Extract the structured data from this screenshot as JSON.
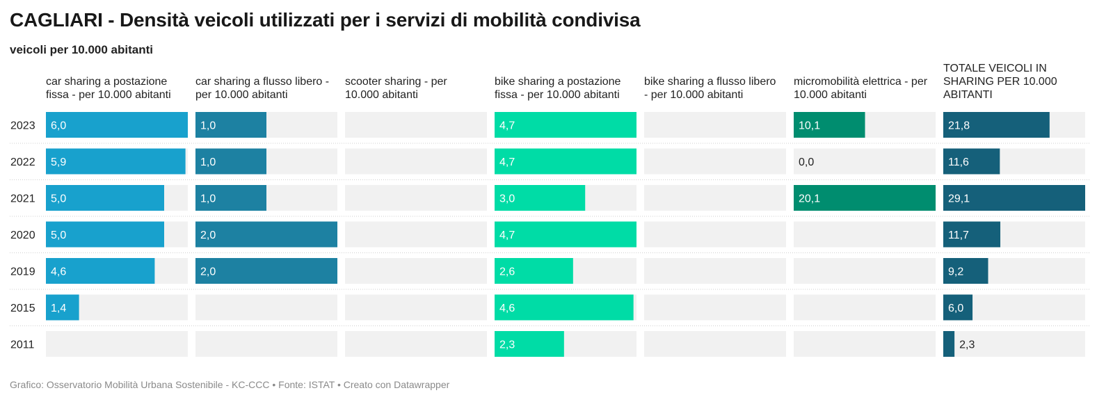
{
  "title": "CAGLIARI - Densità veicoli utilizzati per i servizi di mobilità condivisa",
  "subtitle": "veicoli per 10.000 abitanti",
  "footer": "Grafico: Osservatorio Mobilità Urbana Sostenibile - KC-CCC • Fonte: ISTAT • Creato con Datawrapper",
  "colors": {
    "car_fixed": "#18a1cd",
    "car_free": "#1d81a2",
    "bike_fixed": "#00dca6",
    "micro": "#008d6f",
    "total": "#15607a",
    "track": "#f1f1f1"
  },
  "chart_data": {
    "type": "bar",
    "orientation": "horizontal",
    "layout": "small-multiples",
    "categories": [
      "2023",
      "2022",
      "2021",
      "2020",
      "2019",
      "2015",
      "2011"
    ],
    "series": [
      {
        "name": "car sharing a postazione fissa - per 10.000 abitanti",
        "color": "#18a1cd",
        "max": 6.0,
        "values": [
          6.0,
          5.9,
          5.0,
          5.0,
          4.6,
          1.4,
          null
        ],
        "labels": [
          "6,0",
          "5,9",
          "5,0",
          "5,0",
          "4,6",
          "1,4",
          ""
        ]
      },
      {
        "name": "car sharing a flusso libero - per 10.000 abitanti",
        "color": "#1d81a2",
        "max": 2.0,
        "values": [
          1.0,
          1.0,
          1.0,
          2.0,
          2.0,
          null,
          null
        ],
        "labels": [
          "1,0",
          "1,0",
          "1,0",
          "2,0",
          "2,0",
          "",
          ""
        ]
      },
      {
        "name": "scooter sharing - per 10.000 abitanti",
        "color": "#1d81a2",
        "max": 1.0,
        "values": [
          null,
          null,
          null,
          null,
          null,
          null,
          null
        ],
        "labels": [
          "",
          "",
          "",
          "",
          "",
          "",
          ""
        ]
      },
      {
        "name": "bike sharing a postazione fissa - per 10.000 abitanti",
        "color": "#00dca6",
        "max": 4.7,
        "values": [
          4.7,
          4.7,
          3.0,
          4.7,
          2.6,
          4.6,
          2.3
        ],
        "labels": [
          "4,7",
          "4,7",
          "3,0",
          "4,7",
          "2,6",
          "4,6",
          "2,3"
        ]
      },
      {
        "name": "bike sharing a flusso libero - per 10.000 abitanti",
        "color": "#00dca6",
        "max": 1.0,
        "values": [
          null,
          null,
          null,
          null,
          null,
          null,
          null
        ],
        "labels": [
          "",
          "",
          "",
          "",
          "",
          "",
          ""
        ]
      },
      {
        "name": "micromobilità elettrica - per 10.000 abitanti",
        "color": "#008d6f",
        "max": 20.1,
        "values": [
          10.1,
          0.0,
          20.1,
          null,
          null,
          null,
          null
        ],
        "labels": [
          "10,1",
          "0,0",
          "20,1",
          "",
          "",
          "",
          ""
        ]
      },
      {
        "name": "TOTALE VEICOLI IN SHARING PER 10.000 ABITANTI",
        "color": "#15607a",
        "max": 29.1,
        "values": [
          21.8,
          11.6,
          29.1,
          11.7,
          9.2,
          6.0,
          2.3
        ],
        "labels": [
          "21,8",
          "11,6",
          "29,1",
          "11,7",
          "9,2",
          "6,0",
          "2,3"
        ]
      }
    ],
    "column_headers": [
      [
        "car sharing a postazione",
        "fissa - per 10.000 abitanti"
      ],
      [
        "car sharing a flusso libero -",
        "per 10.000 abitanti"
      ],
      [
        "scooter sharing - per",
        "10.000 abitanti"
      ],
      [
        "bike sharing a postazione",
        "fissa - per 10.000 abitanti"
      ],
      [
        "bike sharing a flusso libero",
        "- per 10.000 abitanti"
      ],
      [
        "micromobilità elettrica - per",
        "10.000 abitanti"
      ],
      [
        "TOTALE VEICOLI IN",
        "SHARING PER 10.000",
        "ABITANTI"
      ]
    ],
    "grid": false,
    "legend": "none"
  }
}
